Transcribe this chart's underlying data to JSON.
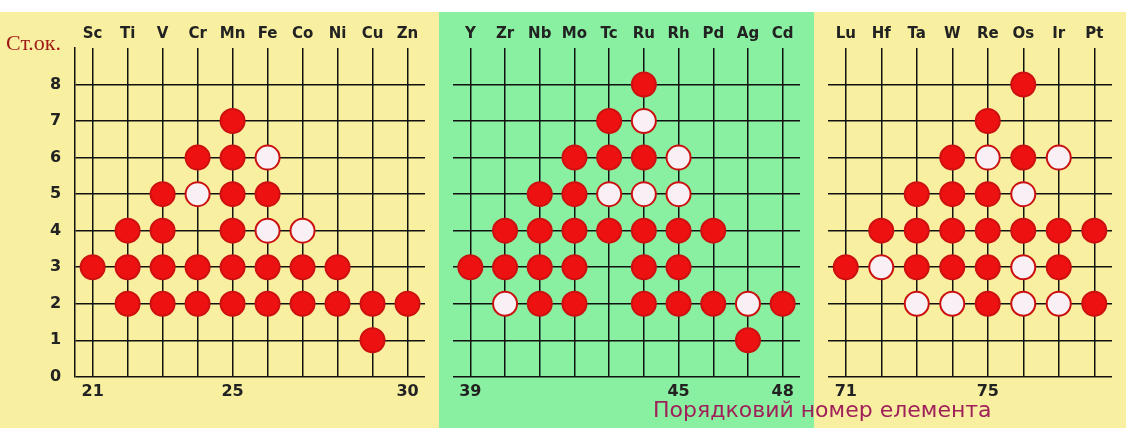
{
  "chart_data": [
    {
      "type": "scatter",
      "ylabel": "Ст.ок.",
      "x2lim": [
        20.5,
        30.5
      ],
      "x2ticks": [
        21,
        25,
        30
      ],
      "categories": [
        "Sc",
        "Ti",
        "V",
        "Cr",
        "Mn",
        "Fe",
        "Co",
        "Ni",
        "Cu",
        "Zn"
      ],
      "series": [
        {
          "color": "#ee1111",
          "x": [
            "Sc",
            "Ti",
            "Ti",
            "Ti",
            "V",
            "V",
            "V",
            "V",
            "Cr",
            "Cr",
            "Cr",
            "Mn",
            "Mn",
            "Mn",
            "Mn",
            "Mn",
            "Mn",
            "Fe",
            "Fe",
            "Fe",
            "Co",
            "Co",
            "Ni",
            "Ni",
            "Cu",
            "Cu",
            "Zn"
          ],
          "values": [
            3,
            2,
            3,
            4,
            2,
            3,
            4,
            5,
            2,
            3,
            6,
            2,
            3,
            4,
            5,
            6,
            7,
            2,
            3,
            5,
            2,
            3,
            2,
            3,
            1,
            2,
            2
          ]
        },
        {
          "color": "#f8f0f4",
          "x": [
            "Cr",
            "Fe",
            "Fe",
            "Co"
          ],
          "values": [
            5,
            4,
            6,
            4
          ]
        }
      ],
      "ylim": [
        0,
        9
      ],
      "yticks": [
        0,
        1,
        2,
        3,
        4,
        5,
        6,
        7,
        8
      ],
      "grid": true,
      "marker": "circle"
    },
    {
      "type": "scatter",
      "xlabel": "Порядковий номер елемента",
      "x2lim": [
        38.5,
        48.5
      ],
      "x2ticks": [
        39,
        45,
        48
      ],
      "categories": [
        "Y",
        "Zr",
        "Nb",
        "Mo",
        "Tc",
        "Ru",
        "Rh",
        "Pd",
        "Ag",
        "Cd"
      ],
      "series": [
        {
          "color": "#ee1111",
          "x": [
            "Y",
            "Zr",
            "Zr",
            "Nb",
            "Nb",
            "Nb",
            "Nb",
            "Mo",
            "Mo",
            "Mo",
            "Mo",
            "Mo",
            "Tc",
            "Tc",
            "Tc",
            "Ru",
            "Ru",
            "Ru",
            "Ru",
            "Ru",
            "Rh",
            "Rh",
            "Rh",
            "Pd",
            "Pd",
            "Ag",
            "Cd"
          ],
          "values": [
            3,
            3,
            4,
            2,
            3,
            4,
            5,
            2,
            3,
            4,
            5,
            6,
            4,
            6,
            7,
            2,
            3,
            4,
            6,
            8,
            2,
            3,
            4,
            2,
            4,
            1,
            2
          ]
        },
        {
          "color": "#f8f0f4",
          "x": [
            "Zr",
            "Tc",
            "Ru",
            "Ru",
            "Rh",
            "Rh",
            "Ag"
          ],
          "values": [
            2,
            5,
            5,
            7,
            5,
            6,
            2
          ]
        }
      ],
      "ylim": [
        0,
        9
      ],
      "yticks": [
        0,
        1,
        2,
        3,
        4,
        5,
        6,
        7,
        8
      ],
      "grid": true,
      "marker": "circle",
      "tick_labels": "x"
    },
    {
      "type": "scatter",
      "x2lim": [
        70.5,
        78.5
      ],
      "x2ticks": [
        71,
        75
      ],
      "categories": [
        "Lu",
        "Hf",
        "Ta",
        "W",
        "Re",
        "Os",
        "Ir",
        "Pt"
      ],
      "series": [
        {
          "color": "#ee1111",
          "x": [
            "Lu",
            "Hf",
            "Ta",
            "Ta",
            "Ta",
            "W",
            "W",
            "W",
            "W",
            "Re",
            "Re",
            "Re",
            "Re",
            "Re",
            "Os",
            "Os",
            "Os",
            "Ir",
            "Ir",
            "Pt",
            "Pt"
          ],
          "values": [
            3,
            4,
            3,
            4,
            5,
            3,
            4,
            5,
            6,
            2,
            3,
            4,
            5,
            7,
            4,
            6,
            8,
            3,
            4,
            2,
            4
          ]
        },
        {
          "color": "#f8f0f4",
          "x": [
            "Hf",
            "Ta",
            "W",
            "Re",
            "Os",
            "Os",
            "Os",
            "Ir",
            "Ir"
          ],
          "values": [
            3,
            2,
            2,
            6,
            2,
            3,
            5,
            2,
            6
          ]
        }
      ],
      "ylim": [
        0,
        9
      ],
      "yticks": [
        0,
        1,
        2,
        3,
        4,
        5,
        6,
        7,
        8
      ],
      "grid": true,
      "marker": "circle",
      "tick_labels": "x"
    }
  ]
}
